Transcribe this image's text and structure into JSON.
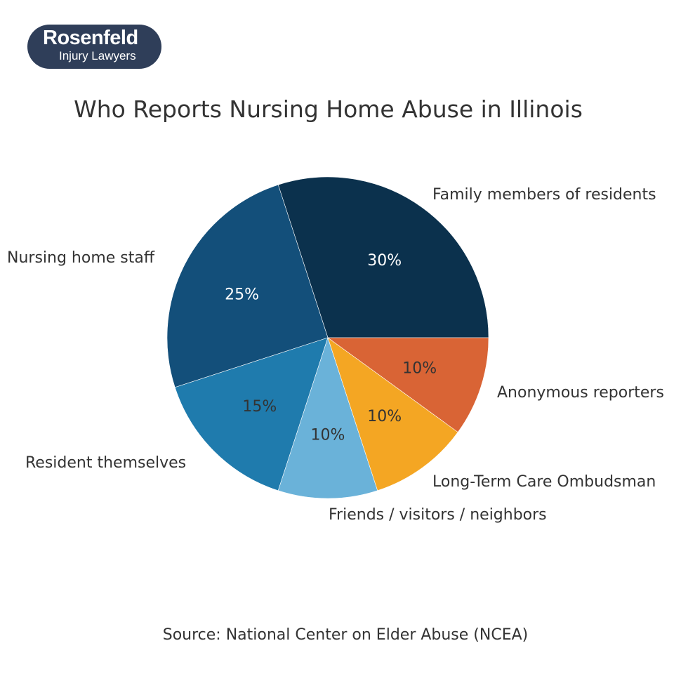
{
  "logo": {
    "name": "Rosenfeld",
    "tagline": "Injury Lawyers",
    "bg_color": "#2f3e59"
  },
  "header": {
    "title": "Who Reports Nursing Home Abuse in Illinois"
  },
  "footer": {
    "source": "Source: National Center on Elder Abuse (NCEA)"
  },
  "chart_data": {
    "type": "pie",
    "title": "Who Reports Nursing Home Abuse in Illinois",
    "source": "Source: National Center on Elder Abuse (NCEA)",
    "start_angle_deg": 0,
    "direction": "counterclockwise",
    "categories": [
      "Family members of residents",
      "Nursing home staff",
      "Resident themselves",
      "Friends / visitors / neighbors",
      "Long-Term Care Ombudsman",
      "Anonymous reporters"
    ],
    "values": [
      30,
      25,
      15,
      10,
      10,
      10
    ],
    "labels": [
      "30%",
      "25%",
      "15%",
      "10%",
      "10%",
      "10%"
    ],
    "colors": [
      "#0b314d",
      "#134f7a",
      "#1f7bad",
      "#6ab2d9",
      "#f4a623",
      "#d96435"
    ],
    "pct_text_colors": [
      "#ffffff",
      "#ffffff",
      "#333333",
      "#333333",
      "#333333",
      "#333333"
    ],
    "legend": "none (labels placed outside slices)"
  }
}
